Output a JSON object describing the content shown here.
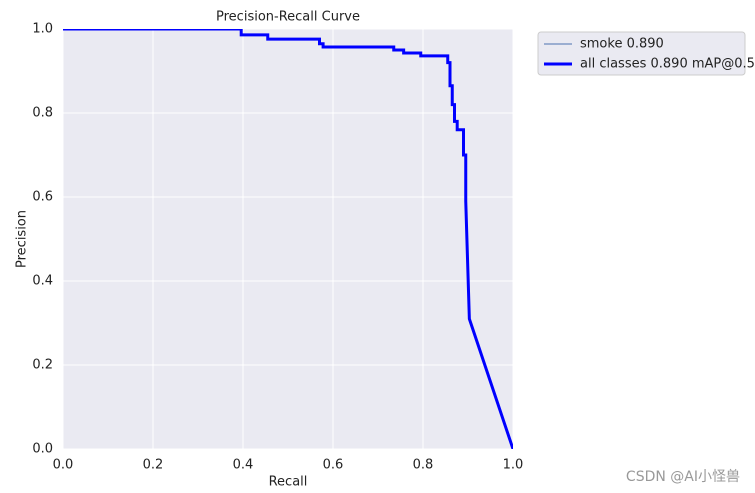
{
  "chart_data": {
    "type": "line",
    "title": "Precision-Recall Curve",
    "x_label": "Recall",
    "y_label": "Precision",
    "xlim": [
      0,
      1
    ],
    "ylim": [
      0,
      1
    ],
    "xticks": [
      {
        "value": 0,
        "label": "0.0"
      },
      {
        "value": 0.2,
        "label": "0.2"
      },
      {
        "value": 0.4,
        "label": "0.4"
      },
      {
        "value": 0.6,
        "label": "0.6"
      },
      {
        "value": 0.8,
        "label": "0.8"
      },
      {
        "value": 1,
        "label": "1.0"
      }
    ],
    "yticks": [
      {
        "value": 0,
        "label": "0.0"
      },
      {
        "value": 0.2,
        "label": "0.2"
      },
      {
        "value": 0.4,
        "label": "0.4"
      },
      {
        "value": 0.6,
        "label": "0.6"
      },
      {
        "value": 0.8,
        "label": "0.8"
      },
      {
        "value": 1,
        "label": "1.0"
      }
    ],
    "grid": true,
    "legend": "outside upper right",
    "x": [
      0,
      0.396,
      0.396,
      0.455,
      0.455,
      0.57,
      0.57,
      0.578,
      0.578,
      0.735,
      0.735,
      0.757,
      0.757,
      0.795,
      0.795,
      0.855,
      0.855,
      0.86,
      0.86,
      0.865,
      0.865,
      0.87,
      0.87,
      0.876,
      0.876,
      0.89,
      0.89,
      0.895,
      0.895,
      0.903,
      1.0
    ],
    "series": [
      {
        "name": "smoke 0.890",
        "color": "#4c72b0",
        "width": 1,
        "values": [
          1.0,
          1.0,
          0.986,
          0.986,
          0.976,
          0.976,
          0.965,
          0.965,
          0.957,
          0.957,
          0.95,
          0.95,
          0.943,
          0.943,
          0.936,
          0.936,
          0.92,
          0.92,
          0.865,
          0.865,
          0.82,
          0.82,
          0.78,
          0.78,
          0.76,
          0.76,
          0.7,
          0.7,
          0.59,
          0.31,
          0.0
        ]
      },
      {
        "name": "all classes 0.890 mAP@0.5",
        "color": "#0000ff",
        "width": 3,
        "values": [
          1.0,
          1.0,
          0.986,
          0.986,
          0.976,
          0.976,
          0.965,
          0.965,
          0.957,
          0.957,
          0.95,
          0.95,
          0.943,
          0.943,
          0.936,
          0.936,
          0.92,
          0.92,
          0.865,
          0.865,
          0.82,
          0.82,
          0.78,
          0.78,
          0.76,
          0.76,
          0.7,
          0.7,
          0.59,
          0.31,
          0.0
        ]
      }
    ]
  },
  "watermark": "CSDN @AI小怪兽"
}
